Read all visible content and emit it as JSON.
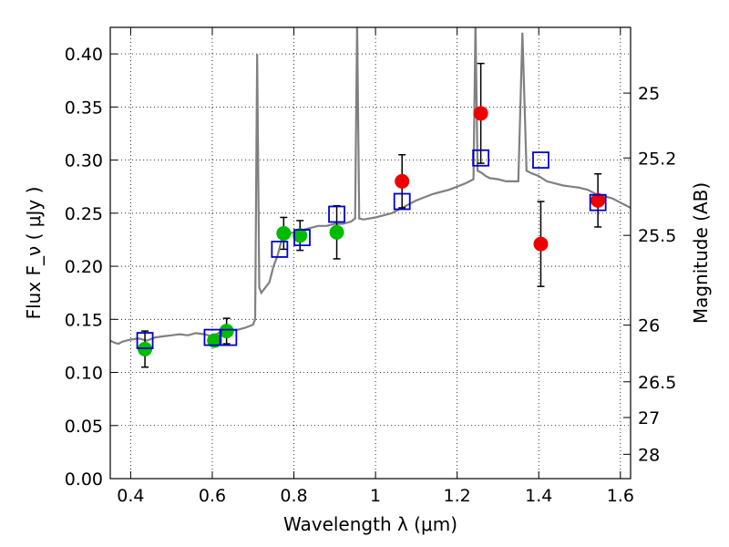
{
  "chart_data": {
    "type": "scatter",
    "xlabel": "Wavelength  λ (μm)",
    "ylabel": "Flux  F_ν  ( μJy )",
    "ylabel_right": "Magnitude (AB)",
    "xlim": [
      0.35,
      1.625
    ],
    "ylim": [
      0.0,
      0.425
    ],
    "grid": true,
    "x_ticks": [
      0.4,
      0.6,
      0.8,
      1.0,
      1.2,
      1.4,
      1.6
    ],
    "x_tick_labels": [
      "0.4",
      "0.6",
      "0.8",
      "1",
      "1.2",
      "1.4",
      "1.6"
    ],
    "y_ticks": [
      0.0,
      0.05,
      0.1,
      0.15,
      0.2,
      0.25,
      0.3,
      0.35,
      0.4
    ],
    "y_tick_labels": [
      "0.00",
      "0.05",
      "0.10",
      "0.15",
      "0.20",
      "0.25",
      "0.30",
      "0.35",
      "0.40"
    ],
    "right_ticks": [
      {
        "label": "25",
        "mag": 25.0
      },
      {
        "label": "25.2",
        "mag": 25.2
      },
      {
        "label": "25.5",
        "mag": 25.5
      },
      {
        "label": "26",
        "mag": 26.0
      },
      {
        "label": "26.5",
        "mag": 26.5
      },
      {
        "label": "27",
        "mag": 27.0
      },
      {
        "label": "28",
        "mag": 28.0
      }
    ],
    "colors": {
      "model": "#808080",
      "green": "#00bb00",
      "red": "#ee0000",
      "box": "#0000cc",
      "errorbar": "#000000"
    },
    "model_spectrum": {
      "x": [
        0.35,
        0.36,
        0.37,
        0.38,
        0.39,
        0.4,
        0.42,
        0.44,
        0.46,
        0.48,
        0.5,
        0.52,
        0.54,
        0.56,
        0.58,
        0.6,
        0.62,
        0.64,
        0.66,
        0.68,
        0.7,
        0.705,
        0.71,
        0.715,
        0.72,
        0.73,
        0.74,
        0.75,
        0.76,
        0.77,
        0.78,
        0.8,
        0.82,
        0.84,
        0.86,
        0.88,
        0.9,
        0.92,
        0.94,
        0.95,
        0.955,
        0.96,
        0.97,
        1.0,
        1.02,
        1.04,
        1.06,
        1.08,
        1.1,
        1.12,
        1.14,
        1.16,
        1.18,
        1.2,
        1.22,
        1.24,
        1.245,
        1.25,
        1.26,
        1.27,
        1.28,
        1.3,
        1.32,
        1.34,
        1.35,
        1.36,
        1.37,
        1.38,
        1.4,
        1.42,
        1.44,
        1.46,
        1.48,
        1.5,
        1.52,
        1.54,
        1.56,
        1.58,
        1.6,
        1.625
      ],
      "y": [
        0.13,
        0.128,
        0.127,
        0.129,
        0.13,
        0.131,
        0.132,
        0.13,
        0.133,
        0.134,
        0.135,
        0.136,
        0.135,
        0.137,
        0.136,
        0.134,
        0.138,
        0.139,
        0.14,
        0.142,
        0.145,
        0.15,
        0.4,
        0.18,
        0.175,
        0.18,
        0.185,
        0.2,
        0.21,
        0.225,
        0.23,
        0.232,
        0.234,
        0.236,
        0.238,
        0.238,
        0.24,
        0.24,
        0.242,
        0.245,
        0.43,
        0.245,
        0.244,
        0.246,
        0.248,
        0.25,
        0.254,
        0.258,
        0.262,
        0.265,
        0.268,
        0.27,
        0.272,
        0.275,
        0.278,
        0.282,
        0.43,
        0.29,
        0.288,
        0.285,
        0.283,
        0.282,
        0.28,
        0.28,
        0.28,
        0.42,
        0.29,
        0.288,
        0.285,
        0.28,
        0.278,
        0.276,
        0.275,
        0.274,
        0.272,
        0.268,
        0.266,
        0.264,
        0.26,
        0.255
      ]
    },
    "series": [
      {
        "marker": "circle",
        "color_key": "green",
        "x": [
          0.435,
          0.605,
          0.635,
          0.775,
          0.815,
          0.905
        ],
        "y": [
          0.122,
          0.13,
          0.139,
          0.231,
          0.229,
          0.232
        ],
        "yerr": [
          0.017,
          0.005,
          0.012,
          0.015,
          0.014,
          0.025
        ]
      },
      {
        "marker": "circle",
        "color_key": "red",
        "x": [
          1.065,
          1.258,
          1.405,
          1.545
        ],
        "y": [
          0.28,
          0.344,
          0.221,
          0.262
        ],
        "yerr": [
          0.025,
          0.047,
          0.04,
          0.025
        ]
      },
      {
        "marker": "square-open",
        "color_key": "box",
        "x": [
          0.435,
          0.6,
          0.64,
          0.765,
          0.82,
          0.905,
          1.065,
          1.258,
          1.405,
          1.545
        ],
        "y": [
          0.13,
          0.133,
          0.133,
          0.216,
          0.227,
          0.249,
          0.261,
          0.302,
          0.3,
          0.26
        ],
        "yerr": []
      }
    ]
  }
}
